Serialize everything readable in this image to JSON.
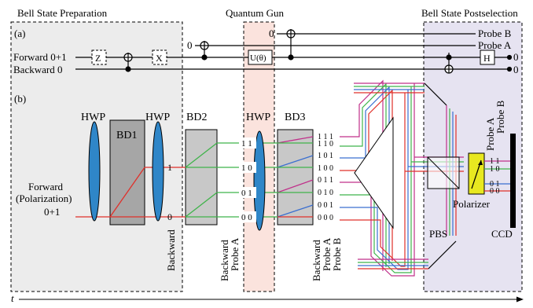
{
  "sections": {
    "bell_prep": "Bell State Preparation",
    "quantum_gun": "Quantum Gun",
    "bell_post": "Bell State Postselection"
  },
  "panels": {
    "a": "(a)",
    "b": "(b)"
  },
  "circuit": {
    "forward_label": "Forward  0+1",
    "backward_label": "Backward  0",
    "zero_a": "0",
    "zero_b": "0",
    "probe_b": "Probe B",
    "probe_a": "Probe A",
    "gate_z": "Z",
    "gate_x": "X",
    "gate_u": "U(θ)",
    "gate_h": "H",
    "out_forward": "0",
    "out_backward": "0"
  },
  "optics": {
    "hwp1": "HWP",
    "hwp2": "HWP",
    "hwp3": "HWP",
    "bd1": "BD1",
    "bd2": "BD2",
    "bd3": "BD3",
    "forward_line1": "Forward",
    "forward_line2": "(Polarization)",
    "input_state": "0+1",
    "beam_1": "1",
    "beam_0": "0",
    "backward_vertical": "Backward",
    "bd2_out": [
      "1 1",
      "1 0",
      "0 1",
      "0 0"
    ],
    "bd2_axis": [
      "Backward",
      "Probe A"
    ],
    "bd3_out": [
      "1  1  1",
      "1  1  0",
      "1  0  1",
      "1  0  0",
      "0  1  1",
      "0  1  0",
      "0  0  1",
      "0  0  0"
    ],
    "bd3_axis": [
      "Backward",
      "Probe A",
      "Probe B"
    ],
    "pol_out": [
      "1 1",
      "1 0",
      "0 1",
      "0 0"
    ],
    "pol_axis": [
      "Probe A",
      "Probe B"
    ],
    "pbs": "PBS",
    "polarizer": "Polarizer",
    "ccd": "CCD"
  },
  "time_axis": "t",
  "colors": {
    "red": "#e0302a",
    "green": "#3fb34a",
    "blue": "#3a6fd0",
    "magenta": "#c0308a",
    "hwp_fill": "#2f86c8",
    "bd_fill": "#c8c8c8",
    "bd1_fill": "#a6a6a6",
    "gun_bg": "#fbe3dd",
    "post_bg": "#e6e3f1",
    "polarizer_fill": "#e8e820"
  }
}
